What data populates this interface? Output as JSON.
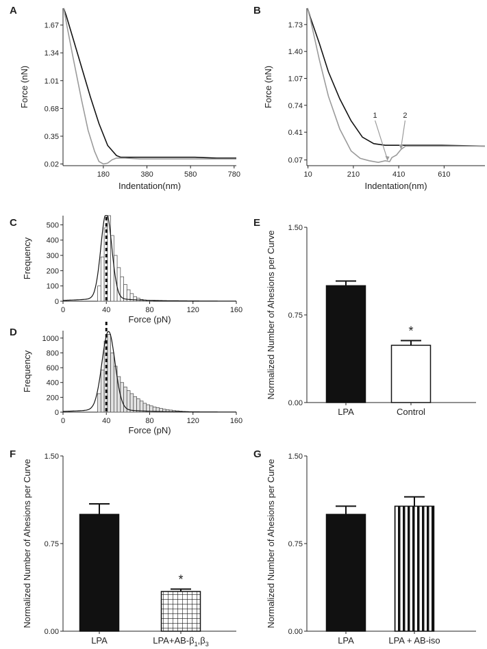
{
  "chart_data": [
    {
      "id": "A",
      "type": "line",
      "panel_label": "A",
      "xlabel": "Indentation(nm)",
      "ylabel": "Force (nN)",
      "xlim": [
        -5,
        790
      ],
      "ylim": [
        0.0,
        1.87
      ],
      "x_ticks": [
        "180",
        "380",
        "580",
        "780"
      ],
      "x_tick_values": [
        180,
        380,
        580,
        780
      ],
      "y_ticks": [
        "0.02",
        "0.35",
        "0.68",
        "1.01",
        "1.34",
        "1.67"
      ],
      "y_tick_values": [
        0.02,
        0.35,
        0.68,
        1.01,
        1.34,
        1.67
      ],
      "series": [
        {
          "name": "approach",
          "color": "#111111",
          "x": [
            -2,
            10,
            40,
            80,
            120,
            160,
            200,
            240,
            260,
            300,
            400,
            500,
            600,
            700,
            790
          ],
          "y": [
            1.87,
            1.78,
            1.52,
            1.17,
            0.82,
            0.5,
            0.24,
            0.12,
            0.1,
            0.1,
            0.1,
            0.1,
            0.1,
            0.09,
            0.09
          ]
        },
        {
          "name": "retract",
          "color": "#9a9a9a",
          "x": [
            -2,
            10,
            40,
            80,
            110,
            140,
            160,
            180,
            200,
            220,
            240,
            280,
            350,
            450,
            600,
            790
          ],
          "y": [
            1.87,
            1.7,
            1.3,
            0.78,
            0.42,
            0.17,
            0.05,
            0.02,
            0.03,
            0.07,
            0.09,
            0.09,
            0.08,
            0.08,
            0.08,
            0.08
          ]
        }
      ]
    },
    {
      "id": "B",
      "type": "line",
      "panel_label": "B",
      "xlabel": "Indentation(nm)",
      "ylabel": "Force (nN)",
      "xlim": [
        5,
        790
      ],
      "ylim": [
        0.0,
        1.93
      ],
      "x_ticks": [
        "10",
        "210",
        "410",
        "610"
      ],
      "x_tick_values": [
        10,
        210,
        410,
        610
      ],
      "y_ticks": [
        "0.07",
        "0.41",
        "0.74",
        "1.07",
        "1.40",
        "1.73"
      ],
      "y_tick_values": [
        0.07,
        0.41,
        0.74,
        1.07,
        1.4,
        1.73
      ],
      "annotations": [
        {
          "text": "1",
          "x": 360,
          "y": 0.06
        },
        {
          "text": "2",
          "x": 420,
          "y": 0.2
        }
      ],
      "series": [
        {
          "name": "approach",
          "color": "#111111",
          "x": [
            8,
            20,
            60,
            100,
            150,
            200,
            250,
            300,
            350,
            450,
            600,
            790
          ],
          "y": [
            1.93,
            1.82,
            1.5,
            1.15,
            0.82,
            0.55,
            0.35,
            0.27,
            0.25,
            0.25,
            0.25,
            0.24
          ]
        },
        {
          "name": "retract",
          "color": "#9a9a9a",
          "x": [
            8,
            20,
            60,
            100,
            150,
            200,
            240,
            280,
            320,
            350,
            370,
            380,
            400,
            420,
            440,
            500,
            600,
            790
          ],
          "y": [
            1.93,
            1.8,
            1.3,
            0.85,
            0.45,
            0.18,
            0.09,
            0.06,
            0.04,
            0.06,
            0.05,
            0.1,
            0.13,
            0.2,
            0.24,
            0.24,
            0.24,
            0.24
          ]
        }
      ]
    },
    {
      "id": "C",
      "type": "histogram",
      "panel_label": "C",
      "xlabel": "Force (pN)",
      "ylabel": "Frequency",
      "xlim": [
        0,
        160
      ],
      "ylim": [
        0,
        560
      ],
      "x_ticks": [
        "0",
        "40",
        "80",
        "120",
        "160"
      ],
      "x_tick_values": [
        0,
        40,
        80,
        120,
        160
      ],
      "y_ticks": [
        "0",
        "100",
        "200",
        "300",
        "400",
        "500"
      ],
      "y_tick_values": [
        0,
        100,
        200,
        300,
        400,
        500
      ],
      "bin_start": 32,
      "bin_width": 3,
      "counts": [
        100,
        290,
        480,
        560,
        430,
        300,
        220,
        160,
        110,
        75,
        50,
        30,
        20,
        12,
        8,
        5,
        3
      ],
      "fit_peak_x": 40,
      "fit_peak_y": 560,
      "fit_sigma": 5,
      "fit_baseline": 20,
      "median_line": 40
    },
    {
      "id": "D",
      "type": "histogram",
      "panel_label": "D",
      "xlabel": "Force (pN)",
      "ylabel": "Frequency",
      "xlim": [
        0,
        160
      ],
      "ylim": [
        0,
        1100
      ],
      "x_ticks": [
        "0",
        "40",
        "80",
        "120",
        "160"
      ],
      "x_tick_values": [
        0,
        40,
        80,
        120,
        160
      ],
      "y_ticks": [
        "0",
        "200",
        "400",
        "600",
        "800",
        "1000"
      ],
      "y_tick_values": [
        0,
        200,
        400,
        600,
        800,
        1000
      ],
      "bin_start": 32,
      "bin_width": 3,
      "counts": [
        250,
        570,
        960,
        1050,
        800,
        620,
        480,
        400,
        340,
        290,
        250,
        210,
        180,
        150,
        120,
        100,
        85,
        70,
        60,
        50,
        40,
        33,
        28,
        22,
        18,
        14,
        10,
        8,
        6
      ],
      "fit_peak_x": 42,
      "fit_peak_y": 1050,
      "fit_sigma": 6,
      "fit_baseline": 40,
      "median_line": 40
    },
    {
      "id": "E",
      "type": "bar",
      "panel_label": "E",
      "ylabel": "Normalized Number of Ahesions per Curve",
      "ylim": [
        0,
        1.5
      ],
      "y_ticks": [
        "0.00",
        "0.75",
        "1.50"
      ],
      "y_tick_values": [
        0,
        0.75,
        1.5
      ],
      "categories": [
        "LPA",
        "Control"
      ],
      "values": [
        1.0,
        0.49
      ],
      "errors": [
        0.04,
        0.04
      ],
      "fills": [
        "solid",
        "white"
      ],
      "significance": [
        "",
        "*"
      ]
    },
    {
      "id": "F",
      "type": "bar",
      "panel_label": "F",
      "ylabel": "Normalized Number of Ahesions per Curve",
      "ylim": [
        0,
        1.5
      ],
      "y_ticks": [
        "0.00",
        "0.75",
        "1.50"
      ],
      "y_tick_values": [
        0,
        0.75,
        1.5
      ],
      "categories": [
        "LPA",
        "LPA+AB-β1,β3"
      ],
      "category_main": [
        "LPA",
        "LPA+AB-β"
      ],
      "category_sub": [
        "",
        "1"
      ],
      "category_mid": [
        "",
        ",β"
      ],
      "category_sub2": [
        "",
        "3"
      ],
      "values": [
        1.0,
        0.34
      ],
      "errors": [
        0.09,
        0.02
      ],
      "fills": [
        "solid",
        "grid"
      ],
      "significance": [
        "",
        "*"
      ]
    },
    {
      "id": "G",
      "type": "bar",
      "panel_label": "G",
      "ylabel": "Normalized Number of Ahesions per Curve",
      "ylim": [
        0,
        1.5
      ],
      "y_ticks": [
        "0.00",
        "0.75",
        "1.50"
      ],
      "y_tick_values": [
        0,
        0.75,
        1.5
      ],
      "categories": [
        "LPA",
        "LPA + AB-iso"
      ],
      "values": [
        1.0,
        1.07
      ],
      "errors": [
        0.07,
        0.08
      ],
      "fills": [
        "solid",
        "vstripes"
      ],
      "significance": [
        "",
        ""
      ]
    }
  ]
}
